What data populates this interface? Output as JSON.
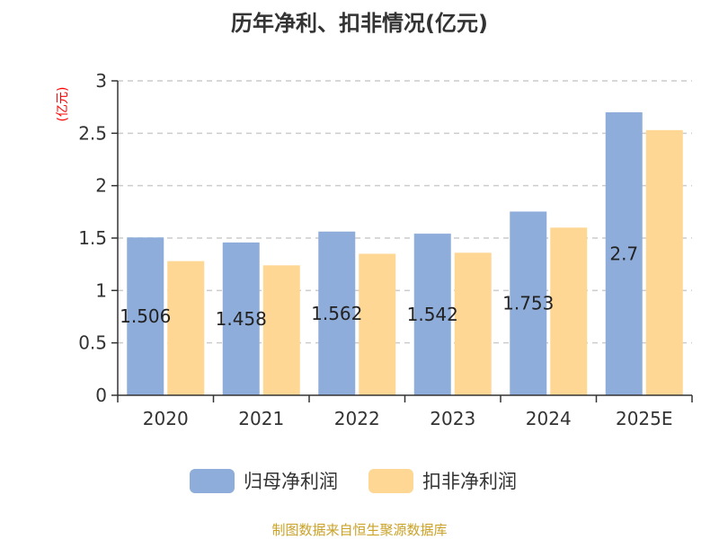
{
  "chart_data": {
    "type": "bar",
    "title": "历年净利、扣非情况(亿元)",
    "unit_label": "(亿元)",
    "categories": [
      "2020",
      "2021",
      "2022",
      "2023",
      "2024",
      "2025E"
    ],
    "series": [
      {
        "name": "归母净利润",
        "values": [
          1.506,
          1.458,
          1.562,
          1.542,
          1.753,
          2.7
        ],
        "color": "#8fadda"
      },
      {
        "name": "扣非净利润",
        "values": [
          1.28,
          1.24,
          1.35,
          1.36,
          1.6,
          2.53
        ],
        "color": "#fed794"
      }
    ],
    "data_labels": [
      "1.506",
      "1.458",
      "1.562",
      "1.542",
      "1.753",
      "2.7"
    ],
    "ylim": [
      0,
      3
    ],
    "yticks": [
      "0",
      "0.5",
      "1",
      "1.5",
      "2",
      "2.5",
      "3"
    ],
    "grid": true,
    "legend_position": "bottom",
    "source": "制图数据来自恒生聚源数据库",
    "colors": {
      "unit_label": "#ff0000",
      "source": "#c9a227",
      "axis": "#333333",
      "grid": "#cccccc"
    }
  }
}
